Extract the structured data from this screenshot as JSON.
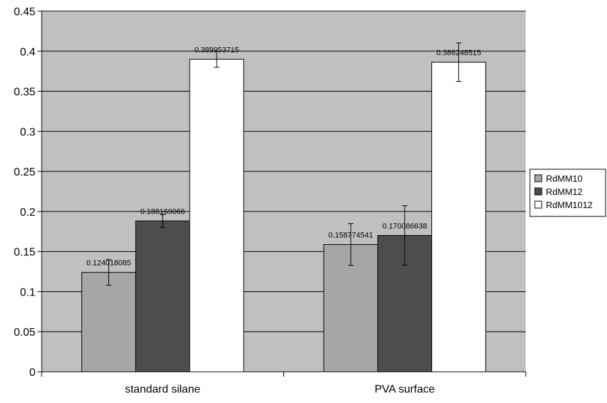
{
  "chart_data": {
    "type": "bar",
    "title": "",
    "xlabel": "",
    "ylabel": "",
    "categories": [
      "standard silane",
      "PVA surface"
    ],
    "ylim": [
      0,
      0.45
    ],
    "yticks": [
      0,
      0.05,
      0.1,
      0.15,
      0.2,
      0.25,
      0.3,
      0.35,
      0.4,
      0.45
    ],
    "ytick_labels": [
      "0",
      "0.05",
      "0.1",
      "0.15",
      "0.2",
      "0.25",
      "0.3",
      "0.35",
      "0.4",
      "0.45"
    ],
    "grid": true,
    "legend_position": "right",
    "plot_background": "#c0c0c0",
    "series": [
      {
        "name": "RdMM10",
        "color": "#a6a6a6",
        "values": [
          0.124018085,
          0.158774541
        ],
        "value_labels": [
          "0.124018085",
          "0.158774541"
        ],
        "error": [
          0.016,
          0.026
        ]
      },
      {
        "name": "RdMM12",
        "color": "#4d4d4d",
        "values": [
          0.188169066,
          0.170086638
        ],
        "value_labels": [
          "0.188169066",
          "0.170086638"
        ],
        "error": [
          0.008,
          0.037
        ]
      },
      {
        "name": "RdMM1012",
        "color": "#ffffff",
        "values": [
          0.389953715,
          0.386248515
        ],
        "value_labels": [
          "0.389953715",
          "0.386248515"
        ],
        "error": [
          0.01,
          0.024
        ]
      }
    ]
  }
}
